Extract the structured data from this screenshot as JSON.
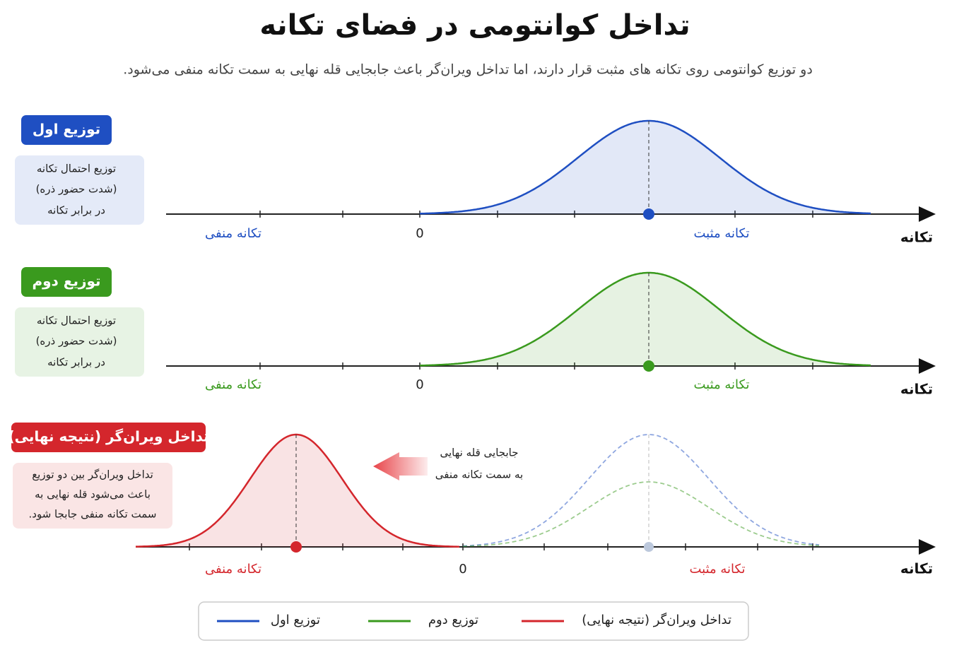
{
  "title": "تداخل کوانتومی در فضای تکانه",
  "subtitle": "دو توزیع کوانتومی روی تکانه های مثبت قرار دارند، اما تداخل ویران‌گر باعث جابجایی قله نهایی به سمت تکانه منفی می‌شود.",
  "panels": [
    {
      "badge": "توزیع اول",
      "description": [
        "توزیع احتمال تکانه",
        "(شدت حضور ذره)",
        "در برابر تکانه"
      ],
      "negative_label": "تکانه منفی",
      "zero_label": "0",
      "positive_label": "تکانه مثبت",
      "axis_label": "تکانه",
      "color": "#1f4fc2"
    },
    {
      "badge": "توزیع دوم",
      "description": [
        "توزیع احتمال تکانه",
        "(شدت حضور ذره)",
        "در برابر تکانه"
      ],
      "negative_label": "تکانه منفی",
      "zero_label": "0",
      "positive_label": "تکانه مثبت",
      "axis_label": "تکانه",
      "color": "#3a9a1e"
    },
    {
      "badge": "تداخل ویران‌گر (نتیجه نهایی)",
      "description": [
        "تداخل ویران‌گر بین دو توزیع",
        "باعث می‌شود قله نهایی به",
        "سمت تکانه منفی جابجا شود."
      ],
      "negative_label": "تکانه منفی",
      "zero_label": "0",
      "positive_label": "تکانه مثبت",
      "axis_label": "تکانه",
      "color": "#d4262c"
    }
  ],
  "annotation": [
    "جابجایی قله نهایی",
    "به سمت تکانه منفی"
  ],
  "legend": [
    {
      "label": "توزیع اول",
      "color": "#1f4fc2"
    },
    {
      "label": "توزیع دوم",
      "color": "#3a9a1e"
    },
    {
      "label": "تداخل ویران‌گر (نتیجه نهایی)",
      "color": "#d4262c"
    }
  ]
}
